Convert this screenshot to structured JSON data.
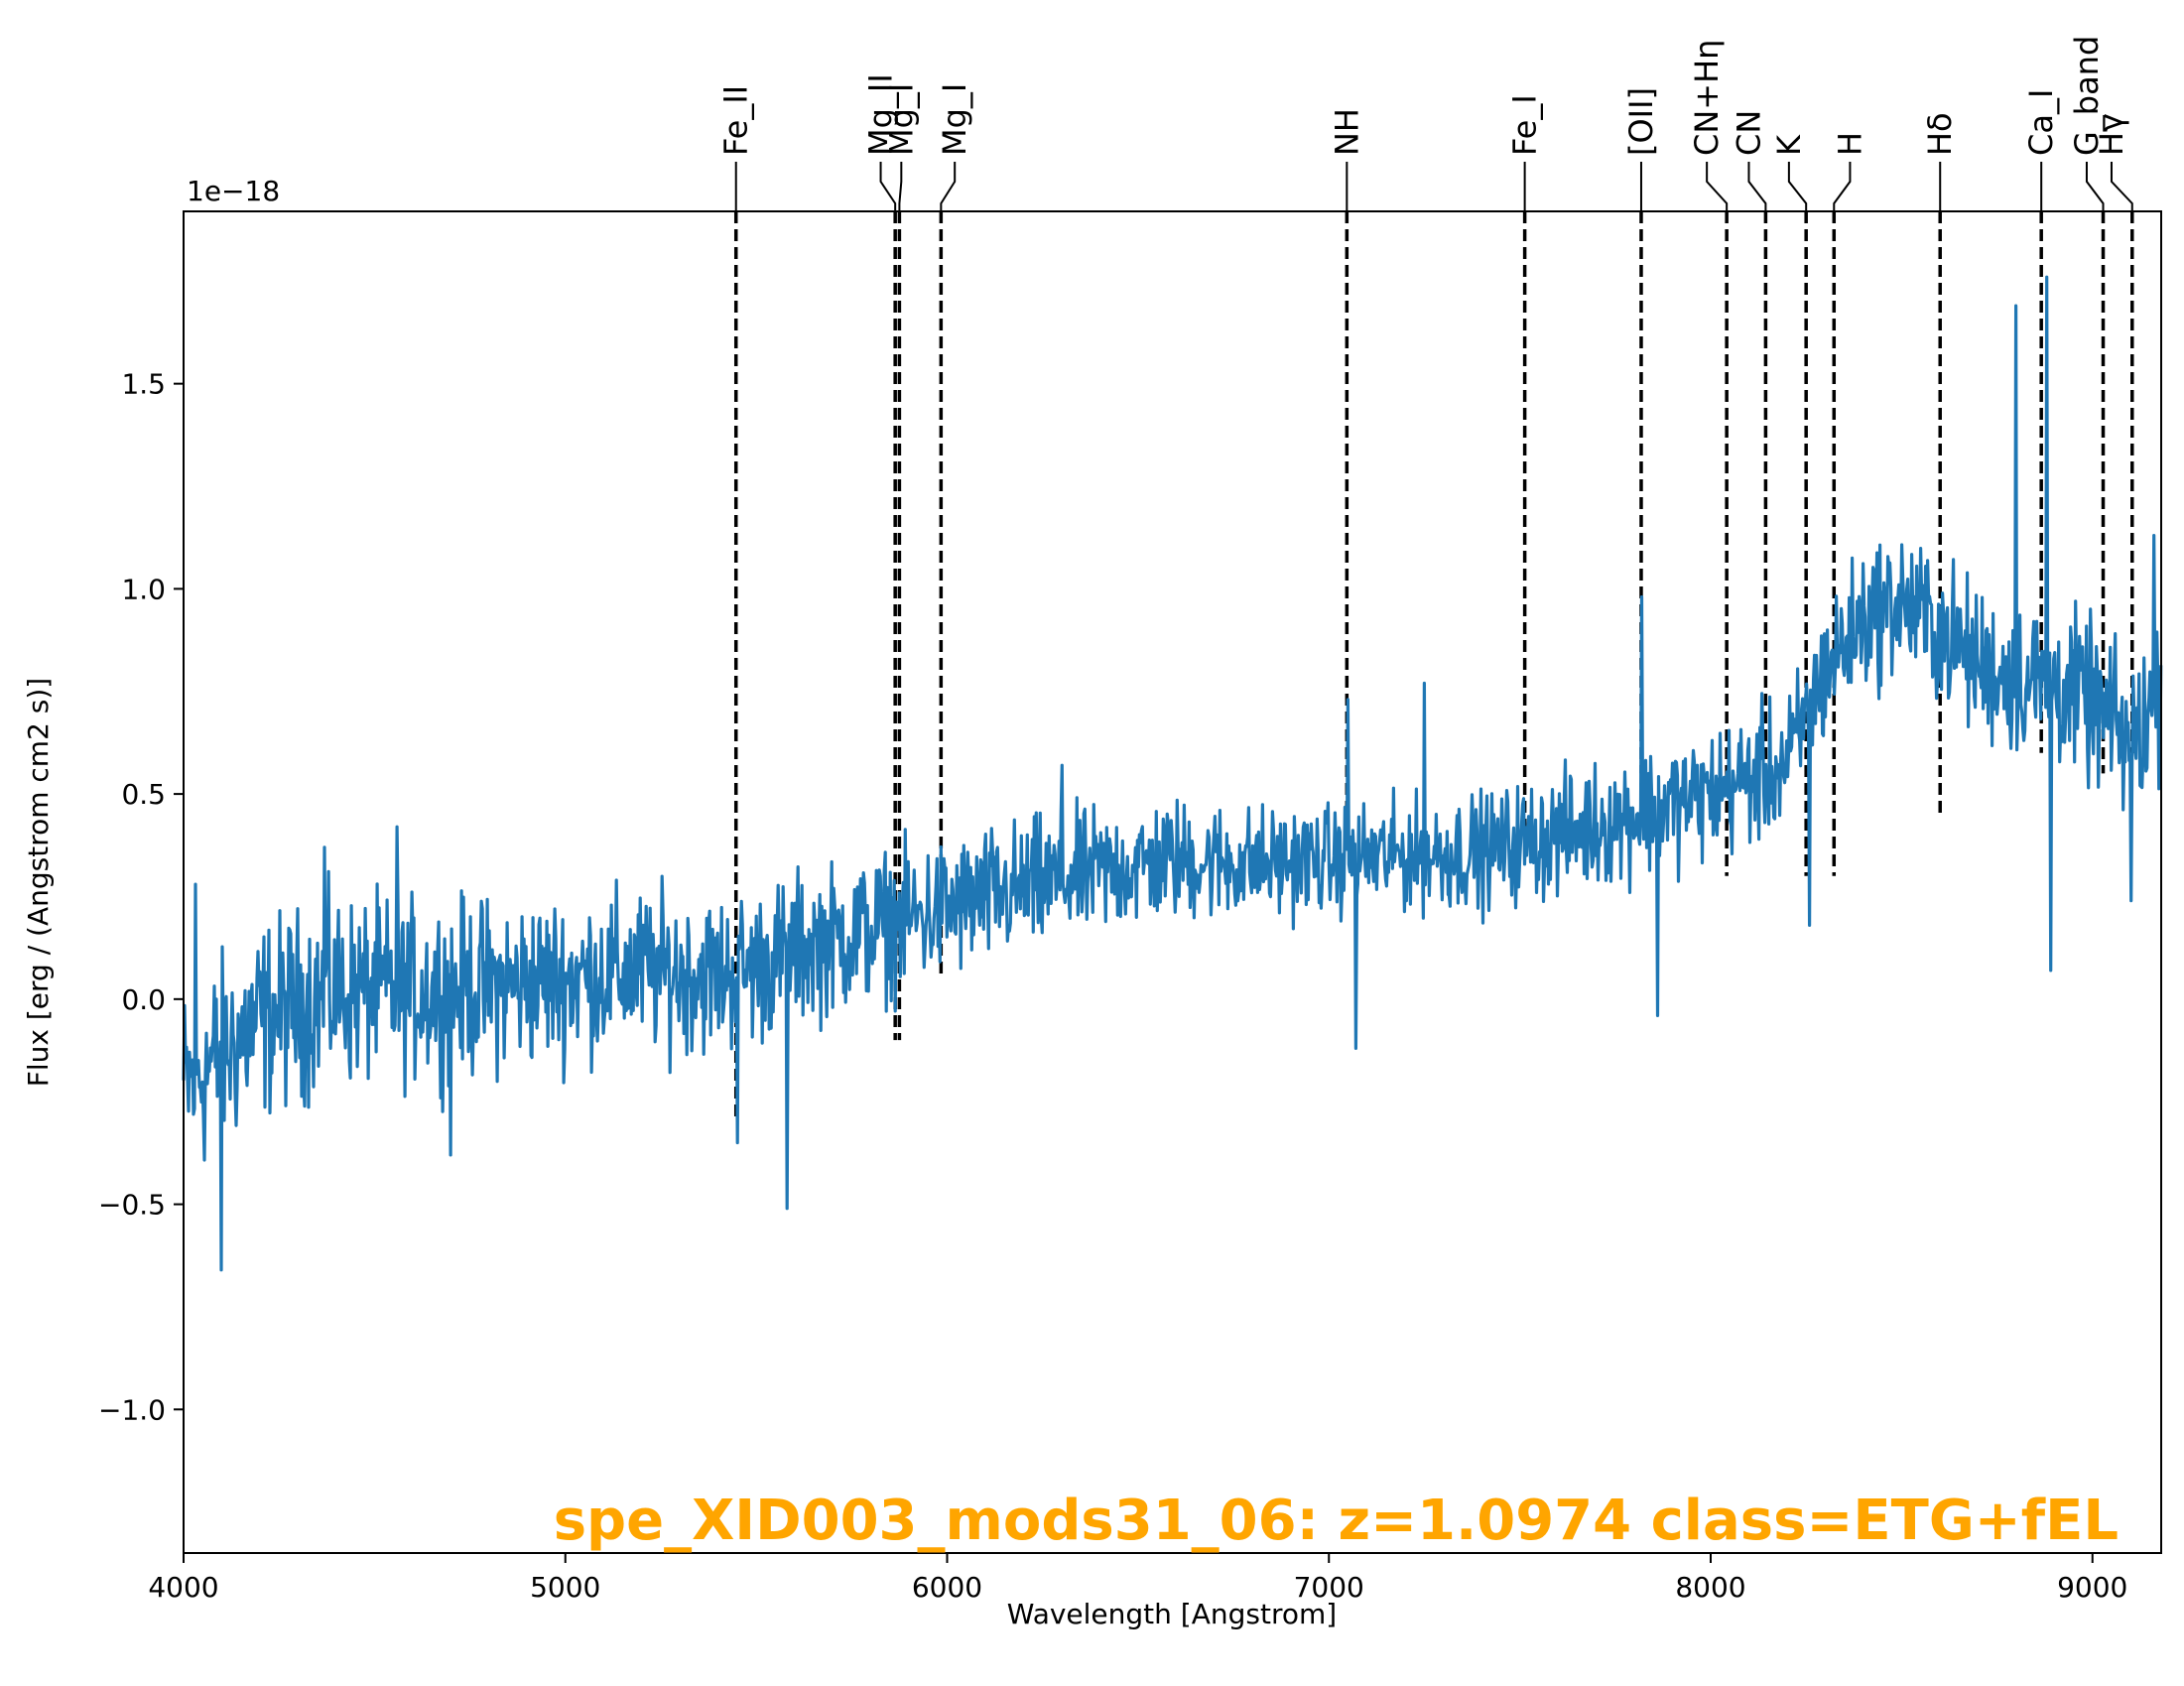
{
  "colors": {
    "spectrum": "#1f77b4",
    "annotation": "#ffa500",
    "line_marker": "#000000"
  },
  "chart_data": {
    "type": "line",
    "xlabel": "Wavelength [Angstrom]",
    "ylabel": "Flux [erg / (Angstrom cm2 s)]",
    "y_offset_text": "1e−18",
    "xlim": [
      4000,
      9180
    ],
    "ylim": [
      -1.35,
      1.92
    ],
    "x_ticks": [
      4000,
      5000,
      6000,
      7000,
      8000,
      9000
    ],
    "x_tick_labels": [
      "4000",
      "5000",
      "6000",
      "7000",
      "8000",
      "9000"
    ],
    "y_ticks": [
      -1.0,
      -0.5,
      0.0,
      0.5,
      1.0,
      1.5
    ],
    "y_tick_labels": [
      "−1.0",
      "−0.5",
      "0.0",
      "0.5",
      "1.0",
      "1.5"
    ],
    "grid": false,
    "annotation": "spe_XID003_mods31_06: z=1.0974 class=ETG+fEL",
    "spectral_lines": [
      {
        "name": "Fe_II",
        "wavelength": 5447,
        "label_wavelength": 5447,
        "ymin": -0.3
      },
      {
        "name": "Mg_II",
        "wavelength": 5864,
        "label_wavelength": 5826,
        "ymin": -0.1
      },
      {
        "name": "Mg_I",
        "wavelength": 5875,
        "label_wavelength": 5880,
        "ymin": -0.1
      },
      {
        "name": "Mg_I",
        "wavelength": 5984,
        "label_wavelength": 6020,
        "ymin": 0.05
      },
      {
        "name": "NH",
        "wavelength": 7047,
        "label_wavelength": 7047,
        "ymin": 0.4
      },
      {
        "name": "Fe_I",
        "wavelength": 7513,
        "label_wavelength": 7513,
        "ymin": 0.42
      },
      {
        "name": "[OII]",
        "wavelength": 7818,
        "label_wavelength": 7818,
        "ymin": 0.55
      },
      {
        "name": "CN+Hη",
        "wavelength": 8042,
        "label_wavelength": 7990,
        "ymin": 0.3
      },
      {
        "name": "CN",
        "wavelength": 8144,
        "label_wavelength": 8100,
        "ymin": 0.55
      },
      {
        "name": "K",
        "wavelength": 8250,
        "label_wavelength": 8205,
        "ymin": 0.3
      },
      {
        "name": "H",
        "wavelength": 8323,
        "label_wavelength": 8365,
        "ymin": 0.3
      },
      {
        "name": "Hδ",
        "wavelength": 8601,
        "label_wavelength": 8601,
        "ymin": 0.45
      },
      {
        "name": "Ca_I",
        "wavelength": 8866,
        "label_wavelength": 8866,
        "ymin": 0.6
      },
      {
        "name": "G_band",
        "wavelength": 9028,
        "label_wavelength": 8985,
        "ymin": 0.55
      },
      {
        "name": "Hγ",
        "wavelength": 9104,
        "label_wavelength": 9050,
        "ymin": 0.6
      }
    ],
    "series": [
      {
        "continuum_points": [
          [
            4000,
            -0.22
          ],
          [
            4200,
            -0.05
          ],
          [
            4400,
            0.02
          ],
          [
            4600,
            0.02
          ],
          [
            4800,
            0.03
          ],
          [
            5000,
            0.05
          ],
          [
            5200,
            0.07
          ],
          [
            5400,
            0.06
          ],
          [
            5500,
            0.08
          ],
          [
            5600,
            0.12
          ],
          [
            5800,
            0.17
          ],
          [
            6000,
            0.22
          ],
          [
            6200,
            0.27
          ],
          [
            6400,
            0.31
          ],
          [
            6600,
            0.34
          ],
          [
            6800,
            0.33
          ],
          [
            7000,
            0.34
          ],
          [
            7200,
            0.35
          ],
          [
            7400,
            0.36
          ],
          [
            7600,
            0.4
          ],
          [
            7800,
            0.45
          ],
          [
            8000,
            0.5
          ],
          [
            8200,
            0.57
          ],
          [
            8300,
            0.8
          ],
          [
            8400,
            0.93
          ],
          [
            8500,
            0.97
          ],
          [
            8600,
            0.9
          ],
          [
            8700,
            0.82
          ],
          [
            8800,
            0.78
          ],
          [
            8900,
            0.77
          ],
          [
            9000,
            0.72
          ],
          [
            9100,
            0.62
          ],
          [
            9180,
            0.75
          ]
        ],
        "noise_amplitude_points": [
          [
            4000,
            0.17
          ],
          [
            5000,
            0.14
          ],
          [
            6000,
            0.12
          ],
          [
            7000,
            0.09
          ],
          [
            8000,
            0.11
          ],
          [
            9180,
            0.14
          ]
        ],
        "features": [
          {
            "x": 4030,
            "y": 0.28
          },
          {
            "x": 4100,
            "y": -0.66
          },
          {
            "x": 4370,
            "y": 0.37
          },
          {
            "x": 4560,
            "y": 0.42
          },
          {
            "x": 4700,
            "y": -0.38
          },
          {
            "x": 5450,
            "y": -0.35
          },
          {
            "x": 5580,
            "y": -0.51
          },
          {
            "x": 6300,
            "y": 0.57
          },
          {
            "x": 7050,
            "y": 0.73
          },
          {
            "x": 7070,
            "y": -0.12
          },
          {
            "x": 7250,
            "y": 0.77
          },
          {
            "x": 7820,
            "y": 0.98
          },
          {
            "x": 7860,
            "y": -0.04
          },
          {
            "x": 8260,
            "y": 0.18
          },
          {
            "x": 8800,
            "y": 1.69
          },
          {
            "x": 8880,
            "y": 1.76
          },
          {
            "x": 8890,
            "y": 0.07
          },
          {
            "x": 9100,
            "y": 0.24
          },
          {
            "x": 9160,
            "y": 1.13
          }
        ]
      }
    ]
  }
}
